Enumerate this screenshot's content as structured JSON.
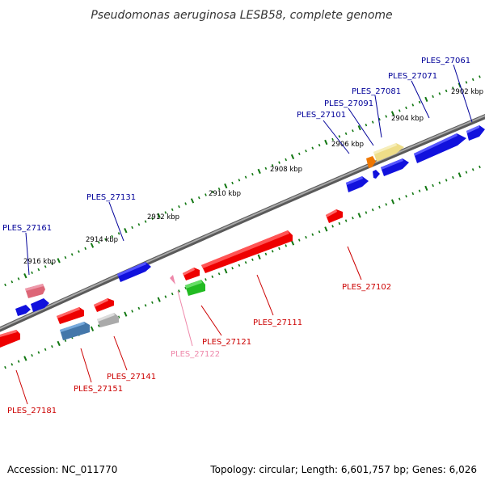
{
  "title": "Pseudomonas aeruginosa LESB58, complete genome",
  "footer": {
    "accession": "Accession: NC_011770",
    "topology": "Topology: circular; Length: 6,601,757 bp; Genes: 6,026"
  },
  "colors": {
    "backbone": "#808080",
    "ticks": "#117711",
    "forward_label": "#000099",
    "reverse_label": "#cc0000",
    "pseudo_label": "#ee88aa"
  },
  "scale": {
    "tick_labels": [
      "2902 kbp",
      "2904 kbp",
      "2906 kbp",
      "2908 kbp",
      "2910 kbp",
      "2912 kbp",
      "2914 kbp",
      "2916 kbp"
    ]
  },
  "genes": [
    {
      "id": "PLES_27061",
      "strand": "forward",
      "color": "#1111dd"
    },
    {
      "id": "PLES_27071",
      "strand": "forward",
      "color": "#1111dd"
    },
    {
      "id": "PLES_27081",
      "strand": "forward",
      "color": "#eedd88"
    },
    {
      "id": "PLES_27091",
      "strand": "forward",
      "color": "#1111dd"
    },
    {
      "id": "PLES_27101",
      "strand": "forward",
      "color": "#ee7700"
    },
    {
      "id": "PLES_27131",
      "strand": "forward",
      "color": "#1111dd"
    },
    {
      "id": "PLES_27161",
      "strand": "forward",
      "color": "#dd6677"
    },
    {
      "id": "PLES_27102",
      "strand": "reverse",
      "color": "#ee0000"
    },
    {
      "id": "PLES_27111",
      "strand": "reverse",
      "color": "#ee0000"
    },
    {
      "id": "PLES_27121",
      "strand": "reverse",
      "color": "#22bb22"
    },
    {
      "id": "PLES_27122",
      "strand": "reverse",
      "color": "#ee88aa"
    },
    {
      "id": "PLES_27141",
      "strand": "reverse",
      "color": "#aaaaaa"
    },
    {
      "id": "PLES_27151",
      "strand": "reverse",
      "color": "#4477aa"
    },
    {
      "id": "PLES_27181",
      "strand": "reverse",
      "color": "#ee0000"
    }
  ]
}
